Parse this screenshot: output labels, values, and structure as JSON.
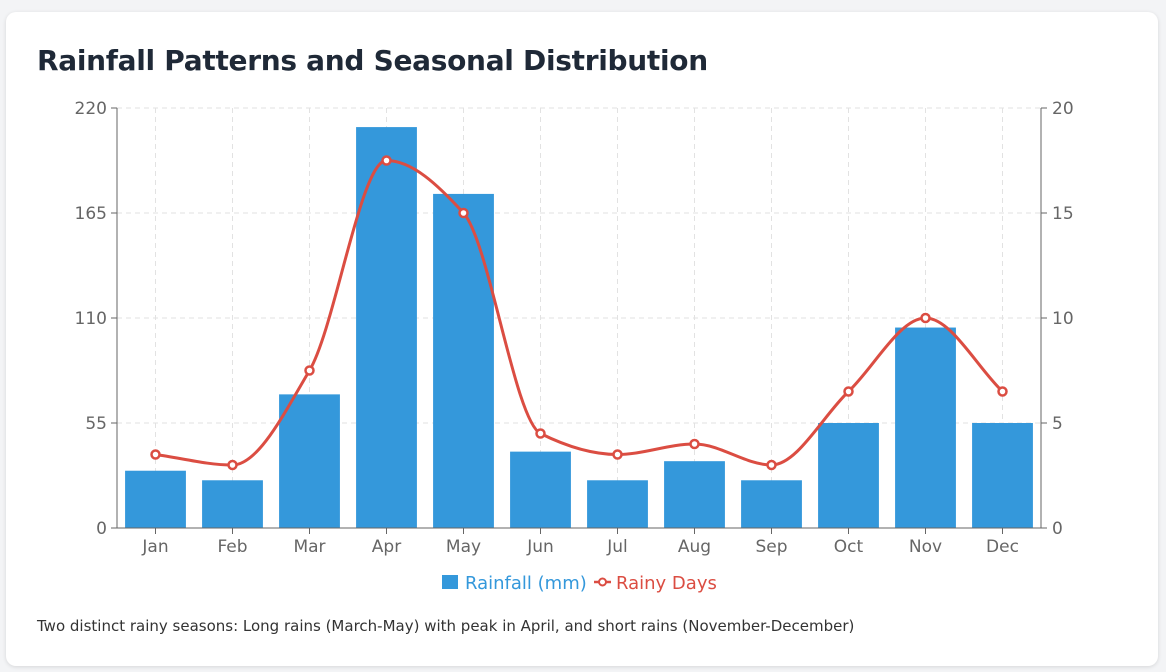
{
  "chart_data": {
    "type": "bar",
    "title": "Rainfall Patterns and Seasonal Distribution",
    "categories": [
      "Jan",
      "Feb",
      "Mar",
      "Apr",
      "May",
      "Jun",
      "Jul",
      "Aug",
      "Sep",
      "Oct",
      "Nov",
      "Dec"
    ],
    "series": [
      {
        "name": "Rainfall (mm)",
        "type": "bar",
        "axis": "left",
        "color": "#3498db",
        "values": [
          30,
          25,
          70,
          210,
          175,
          40,
          25,
          35,
          25,
          55,
          105,
          55
        ]
      },
      {
        "name": "Rainy Days",
        "type": "line",
        "axis": "right",
        "color": "#db4d42",
        "values": [
          3.5,
          3,
          7.5,
          17.5,
          15,
          4.5,
          3.5,
          4,
          3,
          6.5,
          10,
          6.5
        ]
      }
    ],
    "y_left": {
      "min": 0,
      "max": 220,
      "ticks": [
        0,
        55,
        110,
        165,
        220
      ]
    },
    "y_right": {
      "min": 0,
      "max": 20,
      "ticks": [
        0,
        5,
        10,
        15,
        20
      ]
    },
    "grid": true,
    "legend_position": "bottom-center"
  },
  "note": "Two distinct rainy seasons: Long rains (March-May) with peak in April, and short rains (November-December)"
}
